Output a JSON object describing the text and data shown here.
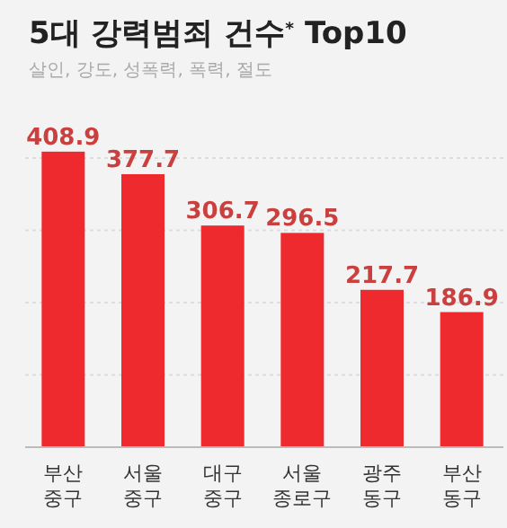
{
  "chart_data": {
    "type": "bar",
    "title": "5대 강력범죄 건수$^{*}$ Top10",
    "subtitle": "살인, 강도, 성폭력, 폭력, 절도",
    "categories": [
      "부산\n중구",
      "서울\n중구",
      "대구\n중구",
      "서울\n종로구",
      "광주\n동구",
      "부산\n동구"
    ],
    "values": [
      408.9,
      377.7,
      306.7,
      296.5,
      217.7,
      186.9
    ],
    "color": "#ee2a2e",
    "data_labels": true,
    "ylim": [
      0,
      410
    ],
    "yticks": [
      {
        "value": 100,
        "label": null
      },
      {
        "value": 200,
        "label": null
      },
      {
        "value": 300,
        "label": null
      },
      {
        "value": 400,
        "label": null
      }
    ],
    "grid": "y",
    "tick_labels": "x"
  }
}
